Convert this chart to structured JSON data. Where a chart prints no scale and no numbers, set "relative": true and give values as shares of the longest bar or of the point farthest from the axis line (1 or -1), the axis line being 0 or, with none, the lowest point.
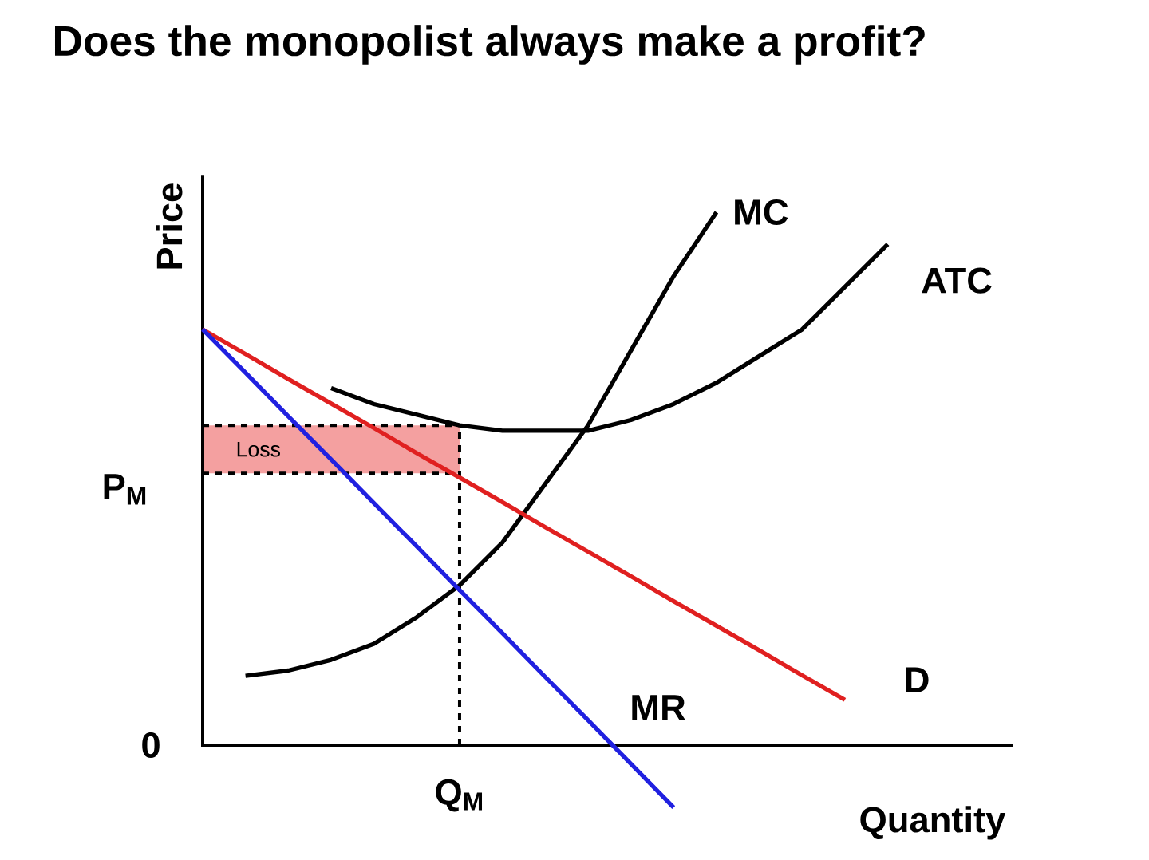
{
  "chart_data": {
    "type": "line",
    "title": "Does the monopolist always make a profit?",
    "xlabel": "Quantity",
    "ylabel": "Price",
    "relative": true,
    "categories": [
      null,
      null,
      null,
      null,
      null,
      null,
      null,
      null,
      null,
      null,
      null,
      null,
      null,
      null,
      null,
      null,
      null,
      null,
      null
    ],
    "series": [
      {
        "name": "MC",
        "color": "#000000",
        "values": [
          null,
          0.13,
          0.14,
          0.16,
          0.19,
          0.24,
          0.3,
          0.38,
          0.49,
          0.6,
          0.74,
          0.88,
          1.0,
          null,
          null,
          null,
          null,
          null,
          null
        ]
      },
      {
        "name": "ATC",
        "color": "#000000",
        "values": [
          null,
          null,
          null,
          0.67,
          0.64,
          0.62,
          0.6,
          0.59,
          0.59,
          0.59,
          0.61,
          0.64,
          0.68,
          0.73,
          0.78,
          0.86,
          0.94,
          null,
          null
        ]
      },
      {
        "name": "D",
        "color": "#e02020",
        "values": [
          0.78,
          0.734,
          0.687,
          0.641,
          0.595,
          0.548,
          0.502,
          0.456,
          0.409,
          0.363,
          0.317,
          0.27,
          0.224,
          0.178,
          0.131,
          0.085,
          null,
          null,
          null
        ]
      },
      {
        "name": "MR",
        "color": "#2020e0",
        "values": [
          0.78,
          0.699,
          0.617,
          0.536,
          0.454,
          0.373,
          0.291,
          0.21,
          0.128,
          0.047,
          -0.035,
          -0.117,
          null,
          null,
          null,
          null,
          null,
          null,
          null
        ]
      }
    ],
    "annotations": [
      "0",
      "Q$_{M}$"
    ],
    "ref_lines": [
      {
        "axis": "y",
        "value": 0.51,
        "label": "P$_{M}$",
        "line_style": "dashed"
      },
      {
        "axis": "y",
        "value": 0.6,
        "line_style": "dashed"
      }
    ],
    "bands": [
      {
        "axis": "y",
        "from": 0.51,
        "to": 0.6,
        "label": "Loss",
        "color": "#f4a0a0"
      }
    ],
    "line_style": "solid",
    "marker": "none"
  }
}
